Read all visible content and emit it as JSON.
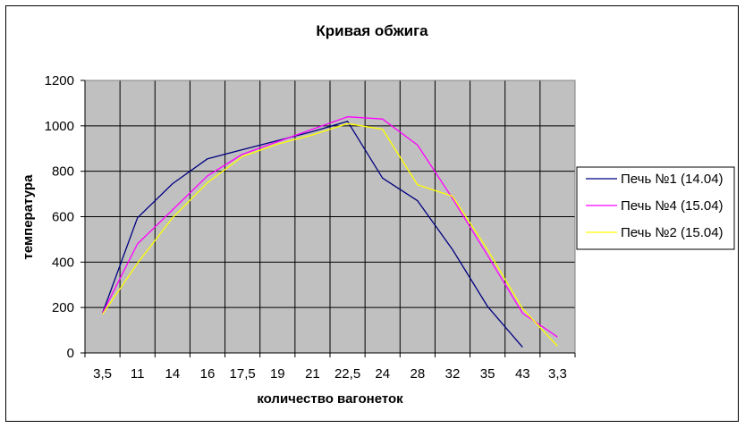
{
  "chart_data": {
    "type": "line",
    "title": "Кривая обжига",
    "xlabel": "количество вагонеток",
    "ylabel": "температура",
    "categories": [
      "3,5",
      "11",
      "14",
      "16",
      "17,5",
      "19",
      "21",
      "22,5",
      "24",
      "28",
      "32",
      "35",
      "43",
      "3,3"
    ],
    "ylim": [
      0,
      1200
    ],
    "yticks": [
      0,
      200,
      400,
      600,
      800,
      1000,
      1200
    ],
    "grid": true,
    "plot_background": "#c0c0c0",
    "legend_position": "right",
    "series": [
      {
        "name": "Печь №1 (14.04)",
        "color": "#000080",
        "values": [
          175,
          595,
          745,
          855,
          895,
          935,
          975,
          1020,
          770,
          670,
          455,
          205,
          25,
          null
        ]
      },
      {
        "name": "Печь №4 (15.04)",
        "color": "#ff00ff",
        "values": [
          175,
          480,
          630,
          780,
          875,
          930,
          985,
          1040,
          1030,
          915,
          680,
          430,
          175,
          70
        ]
      },
      {
        "name": "Печь №2 (15.04)",
        "color": "#ffff00",
        "values": [
          170,
          395,
          595,
          750,
          865,
          920,
          960,
          1010,
          985,
          740,
          690,
          455,
          195,
          30
        ]
      }
    ]
  }
}
